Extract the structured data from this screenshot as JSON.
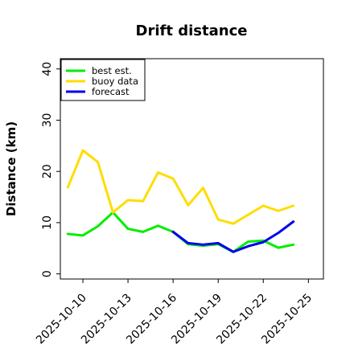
{
  "chart_data": {
    "type": "line",
    "title": "Drift distance",
    "xlabel": "",
    "ylabel": "Distance (km)",
    "x_ticks": [
      "2025-10-10",
      "2025-10-13",
      "2025-10-16",
      "2025-10-19",
      "2025-10-22",
      "2025-10-25"
    ],
    "x_tick_colors": [
      "#000000",
      "#000000",
      "#228b22",
      "#000000",
      "#000000",
      "#000000"
    ],
    "y_ticks": [
      "0",
      "10",
      "20",
      "30",
      "40"
    ],
    "xlim": [
      "2025-10-08T12:00",
      "2025-10-26"
    ],
    "ylim": [
      -1,
      42
    ],
    "grid": false,
    "legend_position": "top-left",
    "series": [
      {
        "name": "best est.",
        "color": "#00ee00",
        "x": [
          "2025-10-09",
          "2025-10-10",
          "2025-10-11",
          "2025-10-12",
          "2025-10-13",
          "2025-10-14",
          "2025-10-15",
          "2025-10-16",
          "2025-10-17",
          "2025-10-18",
          "2025-10-19",
          "2025-10-20",
          "2025-10-21",
          "2025-10-22",
          "2025-10-23",
          "2025-10-24"
        ],
        "values": [
          7.8,
          7.5,
          9.3,
          12.0,
          8.8,
          8.2,
          9.4,
          8.2,
          5.8,
          5.5,
          5.8,
          4.3,
          6.3,
          6.5,
          5.1,
          5.7
        ]
      },
      {
        "name": "buoy data",
        "color": "#ffdd00",
        "x": [
          "2025-10-09",
          "2025-10-10",
          "2025-10-11",
          "2025-10-12",
          "2025-10-13",
          "2025-10-14",
          "2025-10-15",
          "2025-10-16",
          "2025-10-17",
          "2025-10-18",
          "2025-10-19",
          "2025-10-20",
          "2025-10-22",
          "2025-10-23",
          "2025-10-24"
        ],
        "values": [
          16.9,
          24.1,
          21.8,
          12.0,
          14.4,
          14.2,
          19.8,
          18.6,
          13.4,
          16.8,
          10.6,
          9.8,
          13.3,
          12.3,
          13.3
        ]
      },
      {
        "name": "forecast",
        "color": "#0000ee",
        "x": [
          "2025-10-16",
          "2025-10-17",
          "2025-10-18",
          "2025-10-19",
          "2025-10-20",
          "2025-10-21",
          "2025-10-22",
          "2025-10-23",
          "2025-10-24"
        ],
        "values": [
          8.2,
          6.0,
          5.7,
          6.0,
          4.3,
          5.4,
          6.2,
          8.0,
          10.2
        ]
      }
    ]
  }
}
